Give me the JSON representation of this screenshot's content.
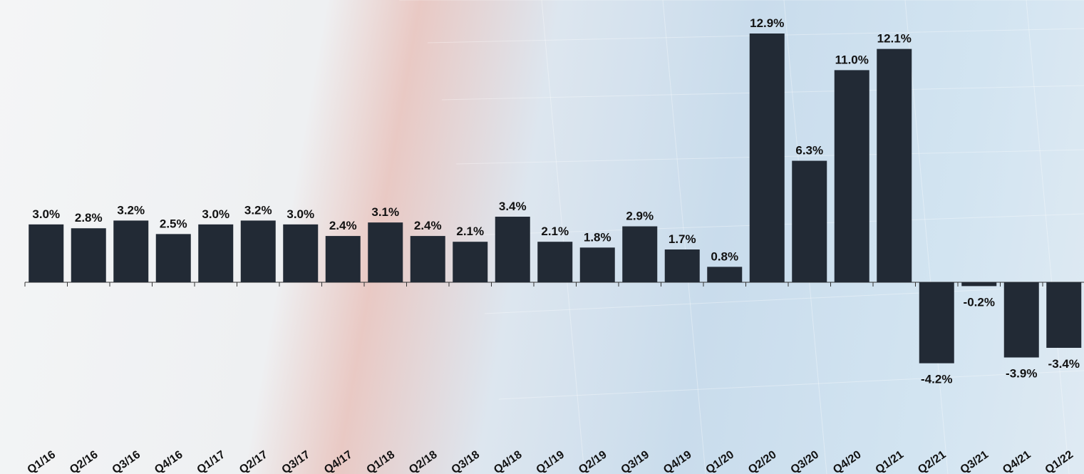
{
  "chart_data": {
    "type": "bar",
    "categories": [
      "Q1/16",
      "Q2/16",
      "Q3/16",
      "Q4/16",
      "Q1/17",
      "Q2/17",
      "Q3/17",
      "Q4/17",
      "Q1/18",
      "Q2/18",
      "Q3/18",
      "Q4/18",
      "Q1/19",
      "Q2/19",
      "Q3/19",
      "Q4/19",
      "Q1/20",
      "Q2/20",
      "Q3/20",
      "Q4/20",
      "Q1/21",
      "Q2/21",
      "Q3/21",
      "Q4/21",
      "Q1/22"
    ],
    "values": [
      3.0,
      2.8,
      3.2,
      2.5,
      3.0,
      3.2,
      3.0,
      2.4,
      3.1,
      2.4,
      2.1,
      3.4,
      2.1,
      1.8,
      2.9,
      1.7,
      0.8,
      12.9,
      6.3,
      11.0,
      12.1,
      -4.2,
      -0.2,
      -3.9,
      -3.4
    ],
    "value_labels": [
      "3.0%",
      "2.8%",
      "3.2%",
      "2.5%",
      "3.0%",
      "3.2%",
      "3.0%",
      "2.4%",
      "3.1%",
      "2.4%",
      "2.1%",
      "3.4%",
      "2.1%",
      "1.8%",
      "2.9%",
      "1.7%",
      "0.8%",
      "12.9%",
      "6.3%",
      "11.0%",
      "12.1%",
      "-4.2%",
      "-0.2%",
      "-3.9%",
      "-3.4%"
    ],
    "color": "#222a35"
  }
}
